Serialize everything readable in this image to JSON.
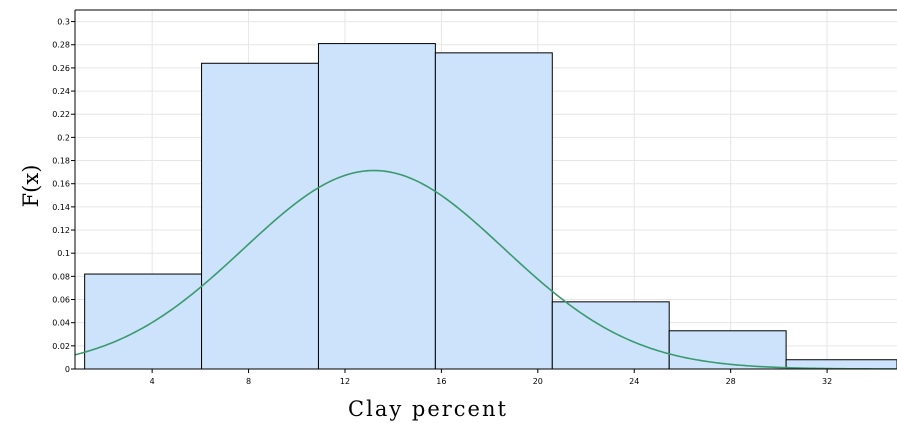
{
  "chart_data": {
    "type": "bar",
    "xlabel": "Clay percent",
    "ylabel": "F(x)",
    "bins": [
      {
        "start": 1.2,
        "end": 6.05,
        "value": 0.082
      },
      {
        "start": 6.05,
        "end": 10.9,
        "value": 0.264
      },
      {
        "start": 10.9,
        "end": 15.75,
        "value": 0.281
      },
      {
        "start": 15.75,
        "end": 20.6,
        "value": 0.273
      },
      {
        "start": 20.6,
        "end": 25.45,
        "value": 0.058
      },
      {
        "start": 25.45,
        "end": 30.3,
        "value": 0.033
      },
      {
        "start": 30.3,
        "end": 35.15,
        "value": 0.008
      }
    ],
    "curve": {
      "type": "normal-density-scaled",
      "mean": 13.2,
      "sd": 5.4,
      "scale": 2.32
    },
    "xlim": [
      0.8,
      34.9
    ],
    "ylim": [
      0,
      0.31
    ],
    "xticks": [
      4,
      8,
      12,
      16,
      20,
      24,
      28,
      32
    ],
    "yticks": [
      0,
      0.02,
      0.04,
      0.06,
      0.08,
      0.1,
      0.12,
      0.14,
      0.16,
      0.18,
      0.2,
      0.22,
      0.24,
      0.26,
      0.28,
      0.3
    ],
    "ytick_labels": [
      "0",
      "0.02",
      "0.04",
      "0.06",
      "0.08",
      "0.1",
      "0.12",
      "0.14",
      "0.16",
      "0.18",
      "0.2",
      "0.22",
      "0.24",
      "0.26",
      "0.28",
      "0.3"
    ],
    "grid": true,
    "colors": {
      "bar_fill": "#cce3fb",
      "bar_stroke": "#000000",
      "curve": "#3a9a6e",
      "grid": "#e6e6e6"
    }
  }
}
